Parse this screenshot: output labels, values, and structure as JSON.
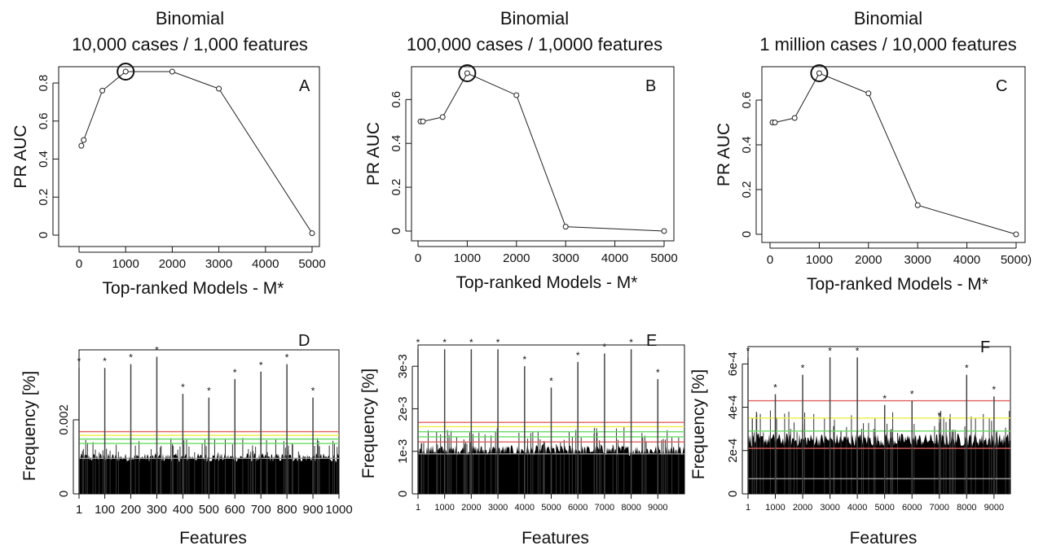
{
  "chart_data": [
    {
      "type": "line",
      "panel": "A",
      "title": "Binomial",
      "subtitle": "10,000 cases / 1,000 features",
      "xlabel": "Top-ranked Models - M*",
      "ylabel": "PR AUC",
      "xlim": [
        0,
        5000
      ],
      "ylim": [
        0,
        0.86
      ],
      "xticks": [
        0,
        1000,
        2000,
        3000,
        4000,
        5000
      ],
      "yticks": [
        0,
        0.2,
        0.4,
        0.6,
        0.8
      ],
      "x": [
        50,
        100,
        500,
        1000,
        2000,
        3000,
        5000
      ],
      "y": [
        0.47,
        0.5,
        0.76,
        0.86,
        0.86,
        0.77,
        0.01
      ],
      "highlight_x": 1000,
      "grid": false
    },
    {
      "type": "line",
      "panel": "B",
      "title": "Binomial",
      "subtitle": "100,000 cases / 1,0000 features",
      "xlabel": "Top-ranked Models - M*",
      "ylabel": "PR AUC",
      "xlim": [
        0,
        5000
      ],
      "ylim": [
        0,
        0.72
      ],
      "xticks": [
        0,
        1000,
        2000,
        3000,
        4000,
        5000
      ],
      "yticks": [
        0,
        0.2,
        0.4,
        0.6
      ],
      "x": [
        50,
        100,
        500,
        1000,
        2000,
        3000,
        5000
      ],
      "y": [
        0.5,
        0.5,
        0.52,
        0.72,
        0.62,
        0.02,
        0.0
      ],
      "highlight_x": 1000,
      "grid": false
    },
    {
      "type": "line",
      "panel": "C",
      "title": "Binomial",
      "subtitle": "1 million cases / 10,000 features",
      "xlabel": "Top-ranked Models - M*",
      "ylabel": "PR AUC",
      "xlim": [
        0,
        5000
      ],
      "ylim": [
        0,
        0.72
      ],
      "xticks": [
        0,
        1000,
        2000,
        3000,
        4000,
        5000
      ],
      "xtick_labels": [
        "0",
        "1000",
        "2000",
        "3000",
        "4000",
        "5000)"
      ],
      "yticks": [
        0,
        0.2,
        0.4,
        0.6
      ],
      "x": [
        50,
        100,
        500,
        1000,
        2000,
        3000,
        5000
      ],
      "y": [
        0.5,
        0.5,
        0.52,
        0.72,
        0.63,
        0.13,
        0.0
      ],
      "highlight_x": 1000,
      "grid": false
    },
    {
      "type": "bar",
      "panel": "D",
      "xlabel": "Features",
      "ylabel": "Frequency [%]",
      "n_features": 1000,
      "xlim": [
        1,
        1000
      ],
      "ylim": [
        0,
        0.0038
      ],
      "xticks": [
        1,
        100,
        200,
        300,
        400,
        500,
        600,
        700,
        800,
        900,
        1000
      ],
      "yticks": [
        0,
        0.002
      ],
      "ytick_labels": [
        "0",
        "0.002"
      ],
      "background_level": 0.0011,
      "threshold_lines": [
        {
          "color": "#e06060",
          "value": 0.00168
        },
        {
          "color": "#eeee44",
          "value": 0.00158
        },
        {
          "color": "#66dd66",
          "value": 0.00148
        },
        {
          "color": "#66dd66",
          "value": 0.00136
        },
        {
          "color": "#999999",
          "value": 0.00096
        }
      ],
      "true_features": [
        1,
        100,
        200,
        300,
        400,
        500,
        600,
        700,
        800,
        900
      ],
      "true_values": [
        0.0034,
        0.0034,
        0.0035,
        0.0037,
        0.0027,
        0.0026,
        0.0031,
        0.0033,
        0.0035,
        0.0026
      ],
      "marker": "*"
    },
    {
      "type": "bar",
      "panel": "E",
      "xlabel": "Features",
      "ylabel": "Frequency [%]",
      "n_features": 10000,
      "xlim": [
        1,
        10000
      ],
      "ylim": [
        0,
        0.0035
      ],
      "xticks": [
        1,
        1000,
        2000,
        3000,
        4000,
        5000,
        6000,
        7000,
        8000,
        9000
      ],
      "yticks": [
        0,
        0.001,
        0.002,
        0.003
      ],
      "ytick_labels": [
        "0",
        "1e-3",
        "2e-3",
        "3e-3"
      ],
      "background_level": 0.00115,
      "threshold_lines": [
        {
          "color": "#e06060",
          "value": 0.00168
        },
        {
          "color": "#eeee44",
          "value": 0.00158
        },
        {
          "color": "#66dd66",
          "value": 0.00146
        },
        {
          "color": "#66dd66",
          "value": 0.00134
        },
        {
          "color": "#e06060",
          "value": 0.00122
        },
        {
          "color": "#999999",
          "value": 0.00094
        }
      ],
      "true_features": [
        1,
        1000,
        2000,
        3000,
        4000,
        5000,
        6000,
        7000,
        8000,
        9000
      ],
      "true_values": [
        0.0034,
        0.0034,
        0.0034,
        0.0034,
        0.003,
        0.0025,
        0.0031,
        0.0033,
        0.0034,
        0.0027
      ],
      "marker": "*"
    },
    {
      "type": "bar",
      "panel": "F",
      "xlabel": "Features",
      "ylabel": "Frequency [%]",
      "n_features": 9600,
      "xlim": [
        1,
        9600
      ],
      "ylim": [
        0,
        0.00068
      ],
      "xticks": [
        1,
        1000,
        2000,
        3000,
        4000,
        5000,
        6000,
        7000,
        8000,
        9000
      ],
      "yticks": [
        0,
        0.0002,
        0.0004,
        0.0006
      ],
      "ytick_labels": [
        "0",
        "2e-4",
        "4e-4",
        "6e-4"
      ],
      "background_level": 0.00028,
      "threshold_lines": [
        {
          "color": "#e06060",
          "value": 0.00043
        },
        {
          "color": "#eeee44",
          "value": 0.00035
        },
        {
          "color": "#66dd66",
          "value": 0.00029
        },
        {
          "color": "#e06060",
          "value": 0.00021
        },
        {
          "color": "#999999",
          "value": 7e-05
        }
      ],
      "true_features": [
        1,
        1000,
        2000,
        3000,
        4000,
        5000,
        6000,
        7000,
        8000,
        9000
      ],
      "true_values": [
        0.00063,
        0.00046,
        0.00055,
        0.00063,
        0.00063,
        0.00041,
        0.00043,
        0.00033,
        0.00055,
        0.00045
      ],
      "marker": "*"
    }
  ]
}
